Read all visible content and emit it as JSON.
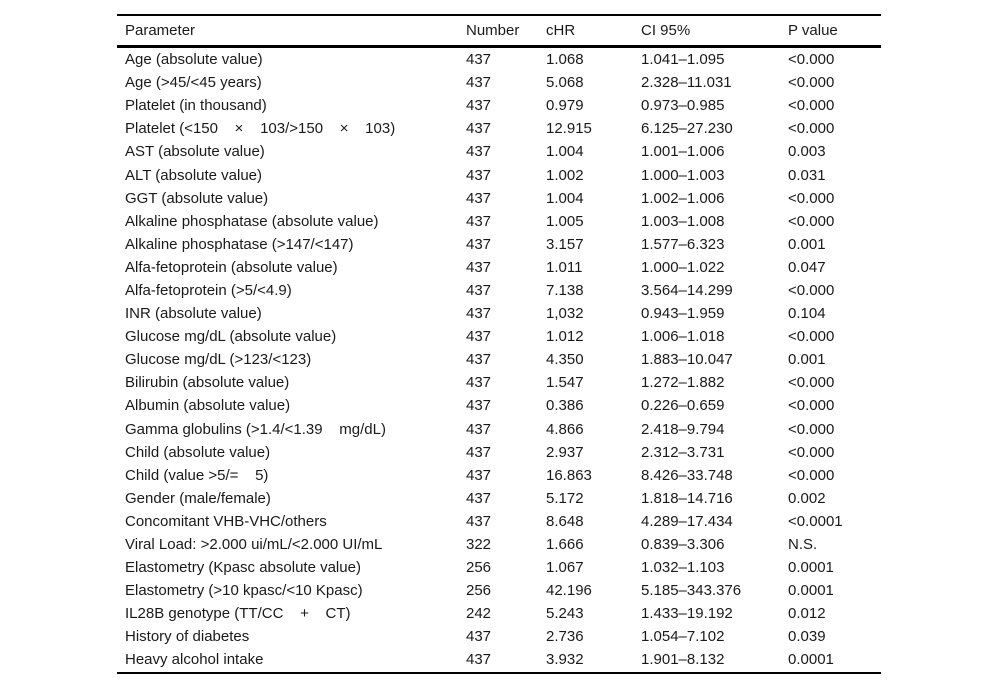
{
  "colors": {
    "background": "#ffffff",
    "text": "#1a1a1a",
    "rule": "#000000"
  },
  "table": {
    "columns": [
      "Parameter",
      "Number",
      "cHR",
      "CI 95%",
      "P value"
    ],
    "rows": [
      {
        "param": "Age (absolute value)",
        "n": "437",
        "chr": "1.068",
        "ci": "1.041–1.095",
        "p": "<0.000"
      },
      {
        "param": "Age (>45/<45 years)",
        "n": "437",
        "chr": "5.068",
        "ci": "2.328–11.031",
        "p": "<0.000"
      },
      {
        "param": "Platelet (in thousand)",
        "n": "437",
        "chr": "0.979",
        "ci": "0.973–0.985",
        "p": "<0.000"
      },
      {
        "param": "Platelet (<150    ×    103/>150    ×    103)",
        "n": "437",
        "chr": "12.915",
        "ci": "6.125–27.230",
        "p": "<0.000"
      },
      {
        "param": "AST (absolute value)",
        "n": "437",
        "chr": "1.004",
        "ci": "1.001–1.006",
        "p": "0.003"
      },
      {
        "param": "ALT (absolute value)",
        "n": "437",
        "chr": "1.002",
        "ci": "1.000–1.003",
        "p": "0.031"
      },
      {
        "param": "GGT (absolute value)",
        "n": "437",
        "chr": "1.004",
        "ci": "1.002–1.006",
        "p": "<0.000"
      },
      {
        "param": "Alkaline phosphatase (absolute value)",
        "n": "437",
        "chr": "1.005",
        "ci": "1.003–1.008",
        "p": "<0.000"
      },
      {
        "param": "Alkaline phosphatase (>147/<147)",
        "n": "437",
        "chr": "3.157",
        "ci": "1.577–6.323",
        "p": "0.001"
      },
      {
        "param": "Alfa-fetoprotein (absolute value)",
        "n": "437",
        "chr": "1.011",
        "ci": "1.000–1.022",
        "p": "0.047"
      },
      {
        "param": "Alfa-fetoprotein (>5/<4.9)",
        "n": "437",
        "chr": "7.138",
        "ci": "3.564–14.299",
        "p": "<0.000"
      },
      {
        "param": "INR (absolute value)",
        "n": "437",
        "chr": "1,032",
        "ci": "0.943–1.959",
        "p": "0.104"
      },
      {
        "param": "Glucose mg/dL (absolute value)",
        "n": "437",
        "chr": "1.012",
        "ci": "1.006–1.018",
        "p": "<0.000"
      },
      {
        "param": "Glucose mg/dL (>123/<123)",
        "n": "437",
        "chr": "4.350",
        "ci": "1.883–10.047",
        "p": "0.001"
      },
      {
        "param": "Bilirubin (absolute value)",
        "n": "437",
        "chr": "1.547",
        "ci": "1.272–1.882",
        "p": "<0.000"
      },
      {
        "param": "Albumin (absolute value)",
        "n": "437",
        "chr": "0.386",
        "ci": "0.226–0.659",
        "p": "<0.000"
      },
      {
        "param": "Gamma globulins (>1.4/<1.39    mg/dL)",
        "n": "437",
        "chr": "4.866",
        "ci": "2.418–9.794",
        "p": "<0.000"
      },
      {
        "param": "Child (absolute value)",
        "n": "437",
        "chr": "2.937",
        "ci": "2.312–3.731",
        "p": "<0.000"
      },
      {
        "param": "Child (value >5/=    5)",
        "n": "437",
        "chr": "16.863",
        "ci": "8.426–33.748",
        "p": "<0.000"
      },
      {
        "param": "Gender (male/female)",
        "n": "437",
        "chr": "5.172",
        "ci": "1.818–14.716",
        "p": "0.002"
      },
      {
        "param": "Concomitant VHB-VHC/others",
        "n": "437",
        "chr": "8.648",
        "ci": "4.289–17.434",
        "p": "<0.0001"
      },
      {
        "param": "Viral Load: >2.000 ui/mL/<2.000 UI/mL",
        "n": "322",
        "chr": "1.666",
        "ci": "0.839–3.306",
        "p": "N.S."
      },
      {
        "param": "Elastometry (Kpasc absolute value)",
        "n": "256",
        "chr": "1.067",
        "ci": "1.032–1.103",
        "p": "0.0001"
      },
      {
        "param": "Elastometry (>10 kpasc/<10 Kpasc)",
        "n": "256",
        "chr": "42.196",
        "ci": "5.185–343.376",
        "p": "0.0001"
      },
      {
        "param": "IL28B genotype (TT/CC    +    CT)",
        "n": "242",
        "chr": "5.243",
        "ci": "1.433–19.192",
        "p": "0.012"
      },
      {
        "param": "History of diabetes",
        "n": "437",
        "chr": "2.736",
        "ci": "1.054–7.102",
        "p": "0.039"
      },
      {
        "param": "Heavy alcohol intake",
        "n": "437",
        "chr": "3.932",
        "ci": "1.901–8.132",
        "p": "0.0001"
      }
    ]
  }
}
